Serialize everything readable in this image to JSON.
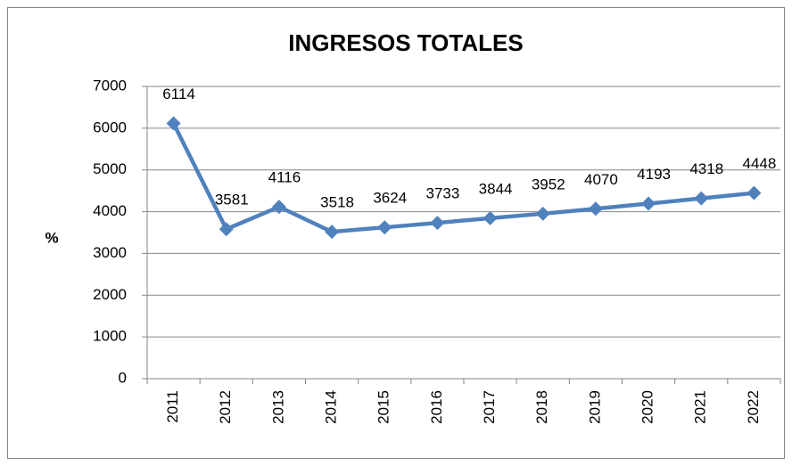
{
  "chart_data": {
    "type": "line",
    "title": "INGRESOS TOTALES",
    "y_label": "%",
    "categories": [
      "2011",
      "2012",
      "2013",
      "2014",
      "2015",
      "2016",
      "2017",
      "2018",
      "2019",
      "2020",
      "2021",
      "2022"
    ],
    "series": [
      {
        "name": "Ingresos totales",
        "color": "#4f81bd",
        "values": [
          6114,
          3581,
          4116,
          3518,
          3624,
          3733,
          3844,
          3952,
          4070,
          4193,
          4318,
          4448
        ]
      }
    ],
    "ylim": [
      0,
      7000
    ],
    "yticks": [
      0,
      1000,
      2000,
      3000,
      4000,
      5000,
      6000,
      7000
    ],
    "grid": true,
    "legend": false
  }
}
